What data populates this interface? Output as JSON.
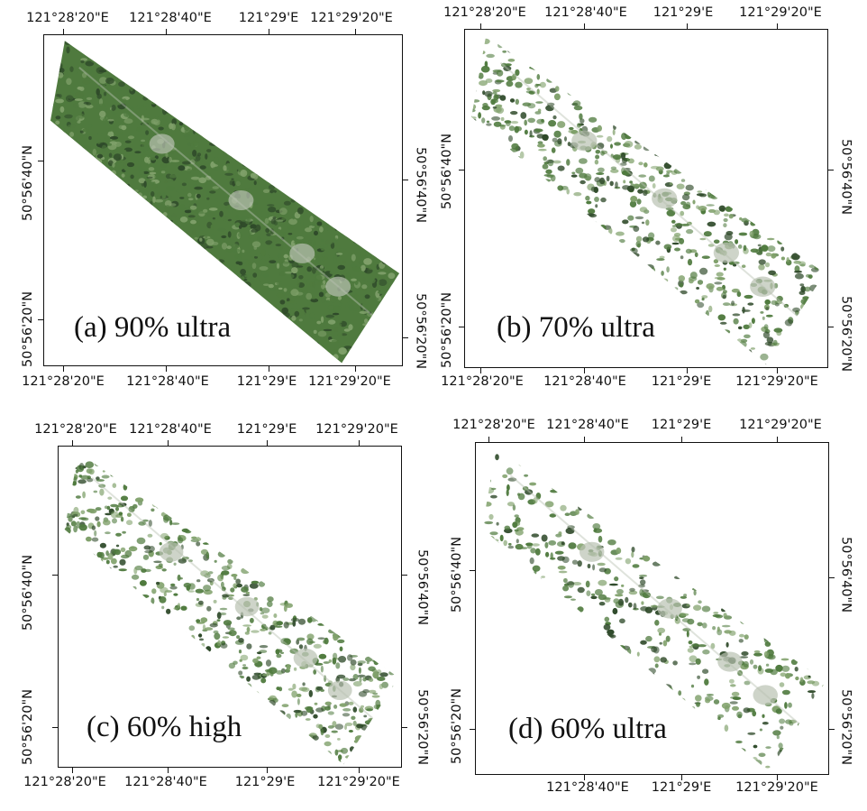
{
  "figure": {
    "panels": [
      {
        "caption": "(a) 90% ultra",
        "coverage": 0.98,
        "top_labels": [
          "121°28'20\"E",
          "121°28'40\"E",
          "121°29'E",
          "121°29'20\"E"
        ],
        "bottom_labels": [
          "121°28'20\"E",
          "121°28'40\"E",
          "121°29'E",
          "121°29'20\"E"
        ],
        "left_labels": [
          "50°56'40\"N",
          "50°56'20\"N"
        ],
        "right_labels": [
          "50°56'40\"N",
          "50°56'20\"N"
        ]
      },
      {
        "caption": "(b) 70% ultra",
        "coverage": 0.62,
        "top_labels": [
          "121°28'20\"E",
          "121°28'40\"E",
          "121°29'E",
          "121°29'20\"E"
        ],
        "bottom_labels": [
          "121°28'20\"E",
          "121°28'40\"E",
          "121°29'E",
          "121°29'20\"E"
        ],
        "left_labels": [
          "50°56'40\"N",
          "50°56'20\"N"
        ],
        "right_labels": [
          "50°56'40\"N",
          "50°56'20\"N"
        ]
      },
      {
        "caption": "(c) 60% high",
        "coverage": 0.68,
        "top_labels": [
          "121°28'20\"E",
          "121°28'40\"E",
          "121°29'E",
          "121°29'20\"E"
        ],
        "bottom_labels": [
          "121°28'20\"E",
          "121°28'40\"E",
          "121°29'E",
          "121°29'20\"E"
        ],
        "left_labels": [
          "50°56'40\"N",
          "50°56'20\"N"
        ],
        "right_labels": [
          "50°56'40\"N",
          "50°56'20\"N"
        ]
      },
      {
        "caption": "(d) 60% ultra",
        "coverage": 0.42,
        "top_labels": [
          "121°28'20\"E",
          "121°28'40\"E",
          "121°29'E",
          "121°29'20\"E"
        ],
        "bottom_labels": [
          "121°28'40\"E",
          "121°29'E",
          "121°29'20\"E"
        ],
        "left_labels": [
          "50°56'40\"N",
          "50°56'20\"N"
        ],
        "right_labels": [
          "50°56'40\"N",
          "50°56'20\"N"
        ]
      }
    ],
    "colors": {
      "dark_forest": "#2f4a2a",
      "mid_forest": "#4f7a3e",
      "light_forest": "#7fa06a",
      "clearing": "#b9c2b2",
      "sparse_bg": "#ffffff"
    }
  }
}
